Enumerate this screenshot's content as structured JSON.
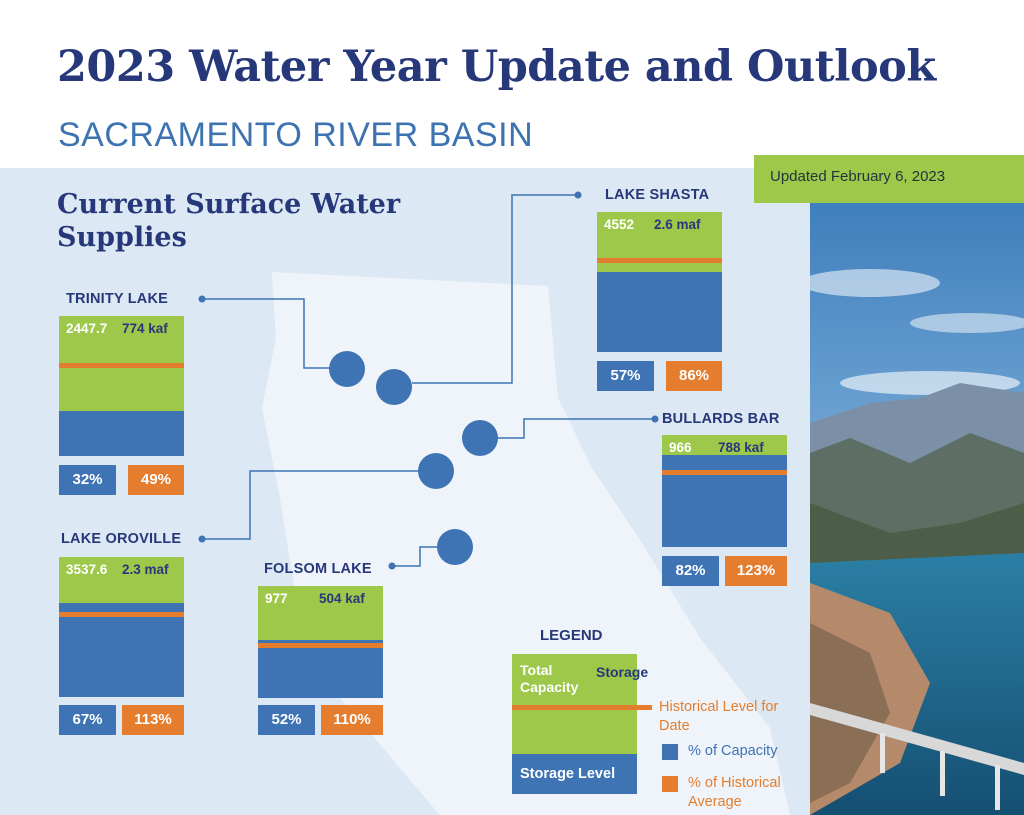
{
  "header": {
    "title": "2023 Water Year Update and Outlook",
    "subtitle": "SACRAMENTO RIVER BASIN",
    "updated": "Updated February 6, 2023"
  },
  "section_title": "Current Surface Water Supplies",
  "colors": {
    "navy": "#27387a",
    "storage_blue": "#3e73b4",
    "capacity_green": "#9dc84a",
    "historical_orange": "#e47d2e",
    "map_background": "#dce9f4"
  },
  "reservoirs": [
    {
      "id": "shasta",
      "name": "LAKE SHASTA",
      "elevation": "4552",
      "capacity": "2.6 maf",
      "pct_capacity": "57%",
      "pct_historical": "86%",
      "storage_fraction": 0.57,
      "historical_fraction": 0.66
    },
    {
      "id": "trinity",
      "name": "TRINITY LAKE",
      "elevation": "2447.7",
      "capacity": "774 kaf",
      "pct_capacity": "32%",
      "pct_historical": "49%",
      "storage_fraction": 0.32,
      "historical_fraction": 0.65
    },
    {
      "id": "bullards",
      "name": "BULLARDS BAR",
      "elevation": "966",
      "capacity": "788 kaf",
      "pct_capacity": "82%",
      "pct_historical": "123%",
      "storage_fraction": 0.82,
      "historical_fraction": 0.67
    },
    {
      "id": "oroville",
      "name": "LAKE OROVILLE",
      "elevation": "3537.6",
      "capacity": "2.3 maf",
      "pct_capacity": "67%",
      "pct_historical": "113%",
      "storage_fraction": 0.67,
      "historical_fraction": 0.59
    },
    {
      "id": "folsom",
      "name": "FOLSOM LAKE",
      "elevation": "977",
      "capacity": "504 kaf",
      "pct_capacity": "52%",
      "pct_historical": "110%",
      "storage_fraction": 0.52,
      "historical_fraction": 0.47
    }
  ],
  "legend": {
    "title": "LEGEND",
    "total_capacity": "Total Capacity",
    "storage": "Storage",
    "storage_level": "Storage Level",
    "historical_level": "Historical Level for Date",
    "pct_capacity": "% of Capacity",
    "pct_historical": "% of Historical Average"
  }
}
